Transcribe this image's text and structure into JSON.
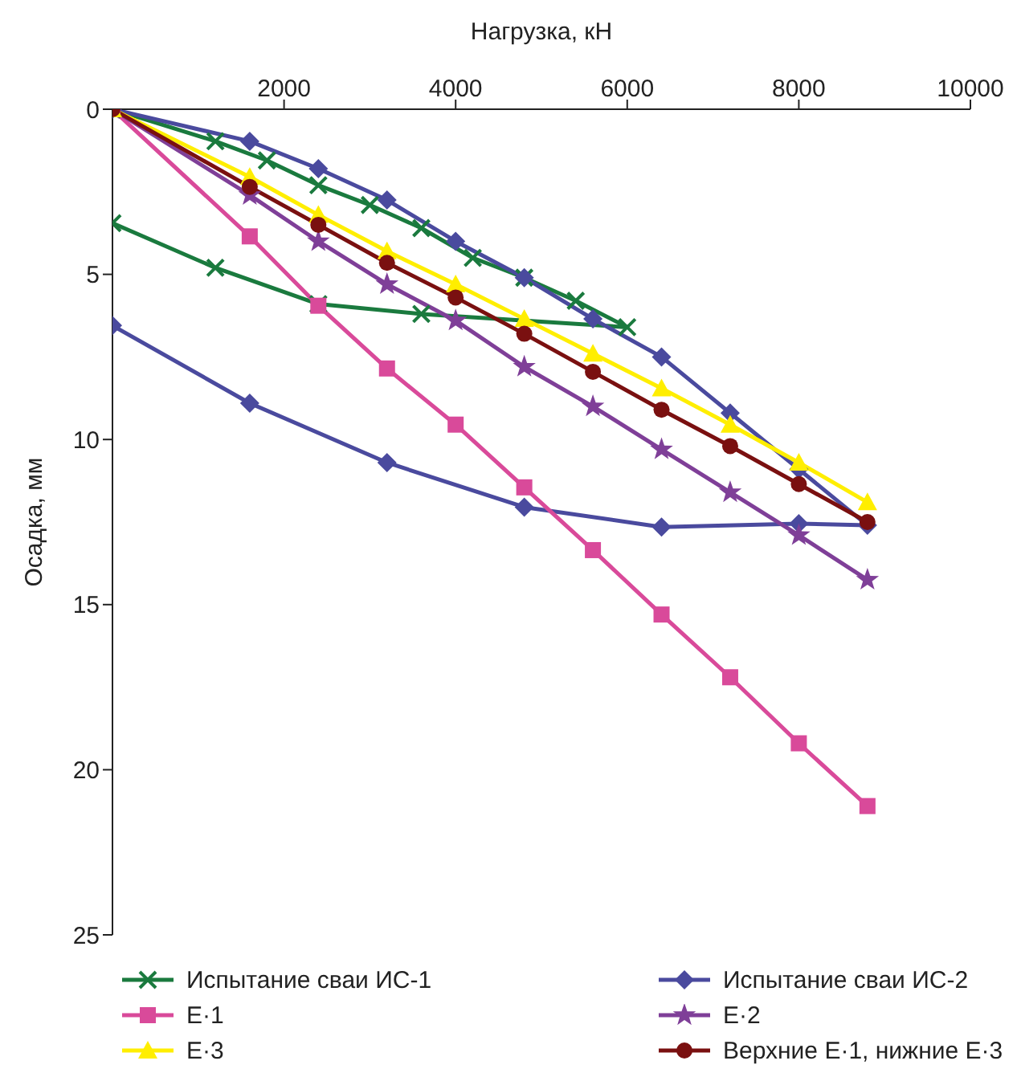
{
  "chart_data": {
    "type": "line",
    "xlabel": "Нагрузка, кН",
    "ylabel": "Осадка, мм",
    "xlim": [
      0,
      10000
    ],
    "xticks": [
      2000,
      4000,
      6000,
      8000,
      10000
    ],
    "ylim": [
      25,
      0
    ],
    "yticks": [
      0,
      5,
      10,
      15,
      20,
      25
    ],
    "grid": false,
    "legend": "bottom",
    "series": [
      {
        "name": "Испытание сваи ИС-1",
        "color": "#1a7a3e",
        "marker": "cross",
        "x": [
          0,
          1200,
          1800,
          2400,
          3000,
          3600,
          4200,
          4800,
          5400,
          6000,
          3600,
          2400,
          1200,
          0
        ],
        "values": [
          0,
          0.97,
          1.55,
          2.3,
          2.9,
          3.6,
          4.5,
          5.1,
          5.8,
          6.6,
          6.2,
          5.9,
          4.8,
          3.45
        ]
      },
      {
        "name": "Испытание сваи ИС-2",
        "color": "#4a4a9e",
        "marker": "diamond",
        "x": [
          0,
          1600,
          2400,
          3200,
          4000,
          4800,
          5600,
          6400,
          7200,
          8000,
          8800,
          8000,
          6400,
          4800,
          3200,
          1600,
          0
        ],
        "values": [
          0,
          0.97,
          1.8,
          2.75,
          4.0,
          5.1,
          6.35,
          7.5,
          9.2,
          10.9,
          12.6,
          12.55,
          12.65,
          12.05,
          10.7,
          8.9,
          6.55
        ]
      },
      {
        "name": "Е·1",
        "color": "#d94a9a",
        "marker": "square",
        "x": [
          0,
          1600,
          2400,
          3200,
          4000,
          4800,
          5600,
          6400,
          7200,
          8000,
          8800
        ],
        "values": [
          0,
          3.85,
          5.95,
          7.85,
          9.55,
          11.45,
          13.35,
          15.3,
          17.2,
          19.2,
          21.1
        ]
      },
      {
        "name": "Е·2",
        "color": "#7f3f98",
        "marker": "star",
        "x": [
          0,
          1600,
          2400,
          3200,
          4000,
          4800,
          5600,
          6400,
          7200,
          8000,
          8800
        ],
        "values": [
          0,
          2.6,
          4.0,
          5.3,
          6.4,
          7.8,
          9.0,
          10.3,
          11.6,
          12.9,
          14.25
        ]
      },
      {
        "name": "Е·3",
        "color": "#ffee00",
        "marker": "triangle",
        "x": [
          0,
          1600,
          2400,
          3200,
          4000,
          4800,
          5600,
          6400,
          7200,
          8000,
          8800
        ],
        "values": [
          0,
          2.05,
          3.2,
          4.3,
          5.3,
          6.35,
          7.4,
          8.45,
          9.55,
          10.7,
          11.9
        ]
      },
      {
        "name": "Верхние Е·1, нижние Е·3",
        "color": "#7a1010",
        "marker": "circle",
        "x": [
          0,
          1600,
          2400,
          3200,
          4000,
          4800,
          5600,
          6400,
          7200,
          8000,
          8800
        ],
        "values": [
          0,
          2.35,
          3.5,
          4.65,
          5.7,
          6.8,
          7.95,
          9.1,
          10.2,
          11.35,
          12.5
        ]
      }
    ]
  }
}
